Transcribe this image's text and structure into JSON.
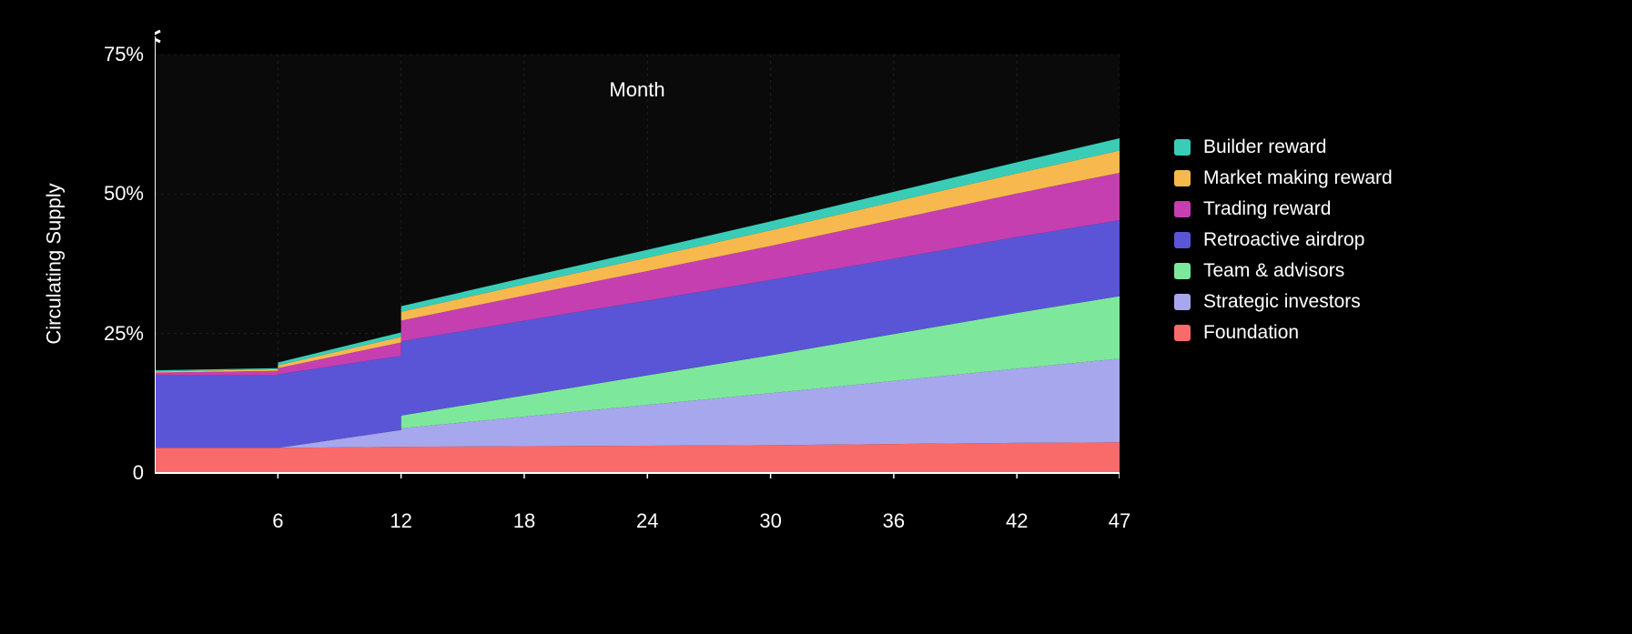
{
  "chart": {
    "type": "area-stacked",
    "background_color": "#000000",
    "panel_background_color": "#0a0a0a",
    "axis_color": "#ffffff",
    "grid_color": "#333333",
    "text_color": "#ffffff",
    "font_size_ticks": 22,
    "font_size_labels": 22,
    "font_size_legend": 21,
    "xlabel": "Month",
    "ylabel": "Circulating Supply",
    "xlim": [
      0,
      47
    ],
    "ylim": [
      0,
      75
    ],
    "ytick_labels": [
      "0",
      "25%",
      "50%",
      "75%"
    ],
    "ytick_values": [
      0,
      25,
      50,
      75
    ],
    "xtick_labels": [
      "6",
      "12",
      "18",
      "24",
      "30",
      "36",
      "42",
      "47"
    ],
    "xtick_values": [
      6,
      12,
      18,
      24,
      30,
      36,
      42,
      47
    ],
    "x_points": [
      0,
      6,
      6.001,
      12,
      12.001,
      18,
      24,
      30,
      36,
      42,
      47
    ],
    "series": [
      {
        "name": "Foundation",
        "color": "#f96a6a",
        "values": [
          4.5,
          4.5,
          4.5,
          4.7,
          4.7,
          4.8,
          4.9,
          5.0,
          5.2,
          5.4,
          5.5
        ]
      },
      {
        "name": "Strategic investors",
        "color": "#a7a7ee",
        "values": [
          0.0,
          0.0,
          0.0,
          3.0,
          3.3,
          5.3,
          7.3,
          9.3,
          11.3,
          13.3,
          15.0
        ]
      },
      {
        "name": "Team & advisors",
        "color": "#7de89c",
        "values": [
          0.0,
          0.0,
          0.0,
          0.0,
          2.3,
          3.8,
          5.3,
          6.8,
          8.4,
          10.0,
          11.2
        ]
      },
      {
        "name": "Retroactive airdrop",
        "color": "#5a55d6",
        "values": [
          13.0,
          13.0,
          13.2,
          13.3,
          13.3,
          13.4,
          13.4,
          13.5,
          13.5,
          13.6,
          13.6
        ]
      },
      {
        "name": "Trading reward",
        "color": "#c53fb1",
        "values": [
          0.5,
          0.8,
          1.1,
          2.4,
          3.7,
          4.5,
          5.3,
          6.1,
          7.0,
          7.8,
          8.5
        ]
      },
      {
        "name": "Market making reward",
        "color": "#f7b94e",
        "values": [
          0.2,
          0.3,
          0.5,
          1.0,
          1.6,
          2.0,
          2.4,
          2.8,
          3.2,
          3.6,
          4.0
        ]
      },
      {
        "name": "Builder reward",
        "color": "#39cdb8",
        "values": [
          0.2,
          0.2,
          0.5,
          0.8,
          1.0,
          1.2,
          1.4,
          1.6,
          1.8,
          2.0,
          2.2
        ]
      }
    ],
    "legend_order": [
      "Builder reward",
      "Market making reward",
      "Trading reward",
      "Retroactive airdrop",
      "Team & advisors",
      "Strategic investors",
      "Foundation"
    ]
  }
}
